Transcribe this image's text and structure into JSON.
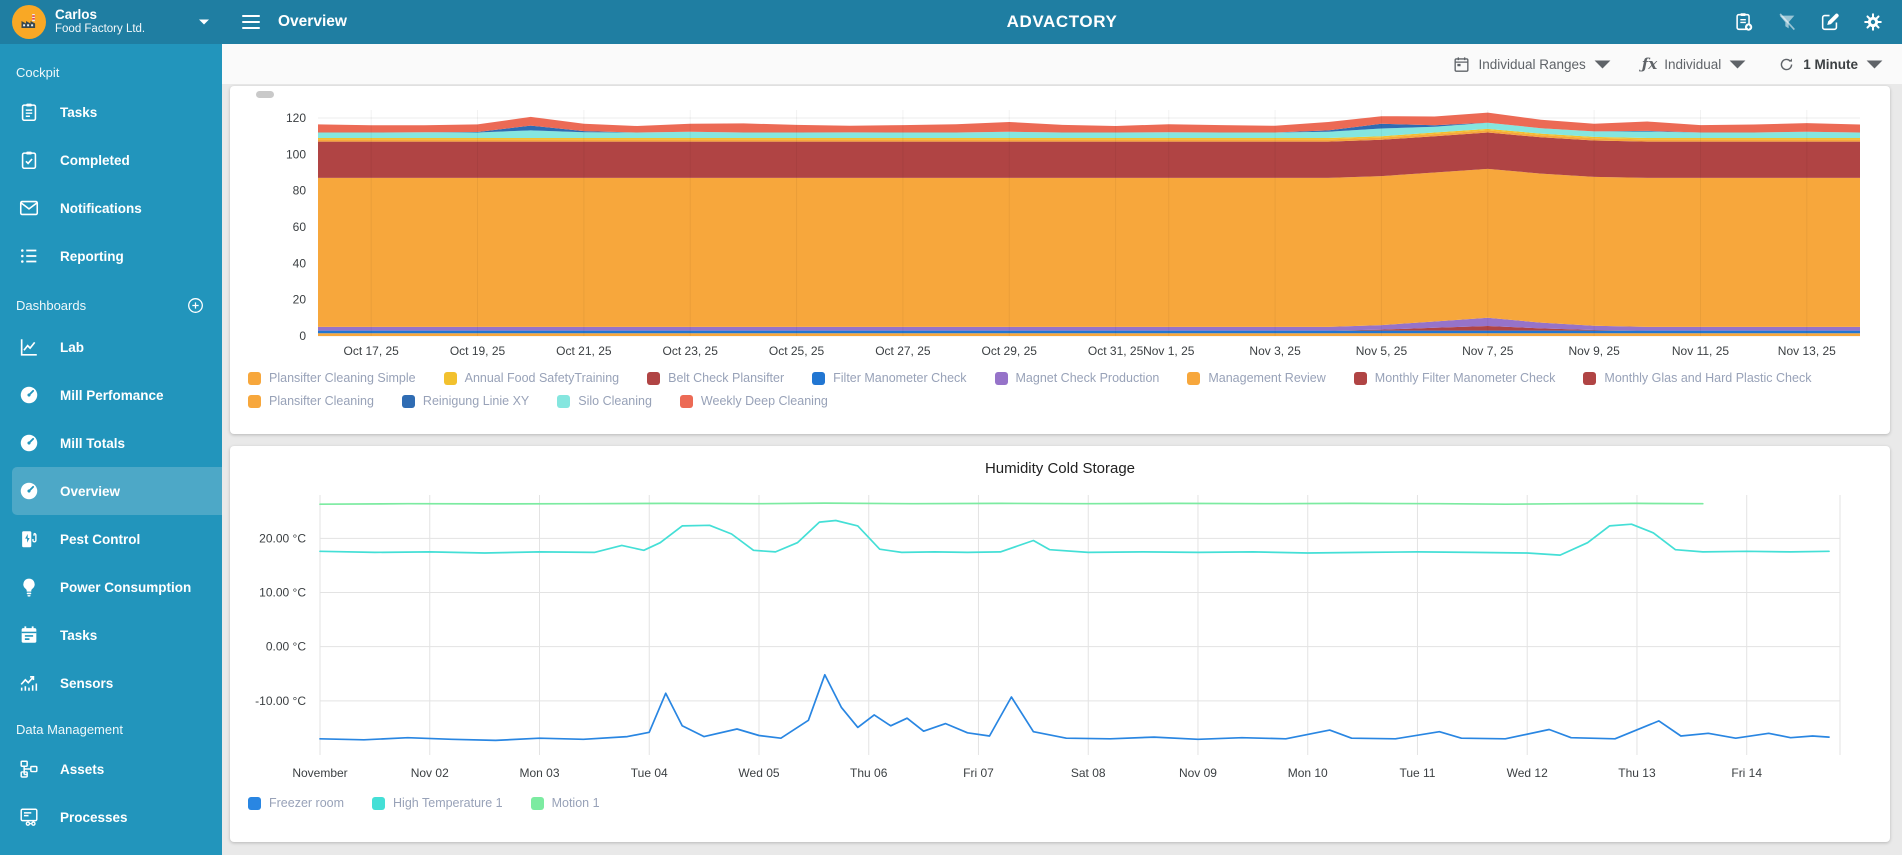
{
  "header": {
    "user": {
      "name": "Carlos",
      "org": "Food Factory Ltd."
    },
    "page_title": "Overview",
    "app_title": "ADVACTORY"
  },
  "toolbar": {
    "range_label": "Individual Ranges",
    "aggregation_label": "Individual",
    "refresh_label": "1 Minute"
  },
  "sidebar": {
    "sections": [
      {
        "title": "Cockpit",
        "items": [
          {
            "label": "Tasks",
            "icon": "clipboard-list"
          },
          {
            "label": "Completed",
            "icon": "clipboard-check"
          },
          {
            "label": "Notifications",
            "icon": "mail"
          },
          {
            "label": "Reporting",
            "icon": "list"
          }
        ]
      },
      {
        "title": "Dashboards",
        "add_button": true,
        "items": [
          {
            "label": "Lab",
            "icon": "line-chart"
          },
          {
            "label": "Mill Perfomance",
            "icon": "gauge"
          },
          {
            "label": "Mill Totals",
            "icon": "gauge"
          },
          {
            "label": "Overview",
            "icon": "gauge",
            "active": true
          },
          {
            "label": "Pest Control",
            "icon": "charging"
          },
          {
            "label": "Power Consumption",
            "icon": "bulb"
          },
          {
            "label": "Tasks",
            "icon": "calendar"
          },
          {
            "label": "Sensors",
            "icon": "trending"
          }
        ]
      },
      {
        "title": "Data Management",
        "items": [
          {
            "label": "Assets",
            "icon": "hierarchy"
          },
          {
            "label": "Processes",
            "icon": "process"
          }
        ]
      }
    ]
  },
  "chart_data": [
    {
      "type": "area",
      "stacked": true,
      "title": "",
      "x_axis": "Daily values, Oct 16 2025 - Nov 14 2025 (30 points)",
      "ylim": [
        0,
        126
      ],
      "y_ticks": [
        0,
        20,
        40,
        60,
        80,
        100,
        120
      ],
      "x_ticks": [
        {
          "pos": 1,
          "label": "Oct 17, 25"
        },
        {
          "pos": 3,
          "label": "Oct 19, 25"
        },
        {
          "pos": 5,
          "label": "Oct 21, 25"
        },
        {
          "pos": 7,
          "label": "Oct 23, 25"
        },
        {
          "pos": 9,
          "label": "Oct 25, 25"
        },
        {
          "pos": 11,
          "label": "Oct 27, 25"
        },
        {
          "pos": 13,
          "label": "Oct 29, 25"
        },
        {
          "pos": 15,
          "label": "Oct 31, 25"
        },
        {
          "pos": 16,
          "label": "Nov 1, 25"
        },
        {
          "pos": 18,
          "label": "Nov 3, 25"
        },
        {
          "pos": 20,
          "label": "Nov 5, 25"
        },
        {
          "pos": 22,
          "label": "Nov 7, 25"
        },
        {
          "pos": 24,
          "label": "Nov 9, 25"
        },
        {
          "pos": 26,
          "label": "Nov 11, 25"
        },
        {
          "pos": 28,
          "label": "Nov 13, 25"
        }
      ],
      "n_points": 30,
      "series": [
        {
          "name": "Management Review",
          "color": "#F7A73C",
          "const": 1.5
        },
        {
          "name": "Filter Manometer Check",
          "color": "#2176D2",
          "const": 1.5
        },
        {
          "name": "Monthly Glas and Hard Plastic Check",
          "color": "#B04444",
          "values": [
            0,
            0,
            0,
            0,
            0,
            0,
            0,
            0,
            0,
            0,
            0,
            0,
            0,
            0,
            0,
            0,
            0,
            0,
            0,
            0,
            0.5,
            1.5,
            2.5,
            1.2,
            0.3,
            0,
            0,
            0,
            0,
            0
          ]
        },
        {
          "name": "Magnet Check Production",
          "color": "#9673C9",
          "values": [
            2,
            2,
            2,
            2,
            2,
            2,
            2,
            2,
            2,
            2,
            2,
            2,
            2,
            2,
            2,
            2,
            2,
            2,
            2,
            2,
            2.5,
            3.5,
            4.5,
            3.2,
            2.3,
            2,
            2,
            2,
            2,
            2
          ]
        },
        {
          "name": "Plansifter Cleaning Simple",
          "color": "#F7A73C",
          "const": 82
        },
        {
          "name": "Belt Check Plansifter",
          "color": "#B04444",
          "const": 20
        },
        {
          "name": "Plansifter Cleaning",
          "color": "#F7A73C",
          "const": 1.2
        },
        {
          "name": "Annual Food SafetyTraining",
          "color": "#F2C12E",
          "const": 0.8
        },
        {
          "name": "Silo Cleaning",
          "color": "#85E6DF",
          "values": [
            3,
            3,
            3.2,
            3,
            4.2,
            3.2,
            3,
            3.4,
            3,
            3,
            3.1,
            3,
            3,
            3.4,
            3,
            3,
            3.2,
            3,
            3,
            3.4,
            4.2,
            3.2,
            3.4,
            3,
            3,
            3.5,
            3,
            3,
            3.4,
            3
          ]
        },
        {
          "name": "Reinigung Linie XY",
          "color": "#2F6CB3",
          "values": [
            0,
            0,
            0,
            0.3,
            2.6,
            0.6,
            0,
            0,
            0,
            0,
            0,
            0,
            0,
            0,
            0,
            0,
            0,
            0,
            0,
            0.8,
            2.6,
            0.8,
            0,
            0,
            0,
            0.4,
            0,
            0,
            0,
            0
          ]
        },
        {
          "name": "Monthly Filter Manometer Check",
          "color": "#B04444",
          "const": 0
        },
        {
          "name": "Weekly Deep Cleaning",
          "color": "#EC6A55",
          "values": [
            4.5,
            4,
            3.8,
            4.2,
            4.8,
            4,
            3.6,
            4.4,
            5,
            4.2,
            3.6,
            4.1,
            4.6,
            5.4,
            4.2,
            3.6,
            4.4,
            4.1,
            3.7,
            4.6,
            4.2,
            4.8,
            5.6,
            4.6,
            4.2,
            5.2,
            4.1,
            4.4,
            4.8,
            4.4
          ]
        }
      ],
      "legend": [
        {
          "name": "Plansifter Cleaning Simple",
          "color": "#F7A73C"
        },
        {
          "name": "Annual Food SafetyTraining",
          "color": "#F2C12E"
        },
        {
          "name": "Belt Check Plansifter",
          "color": "#B04444"
        },
        {
          "name": "Filter Manometer Check",
          "color": "#2176D2"
        },
        {
          "name": "Magnet Check Production",
          "color": "#9673C9"
        },
        {
          "name": "Management Review",
          "color": "#F7A73C"
        },
        {
          "name": "Monthly Filter Manometer Check",
          "color": "#B04444"
        },
        {
          "name": "Monthly Glas and Hard Plastic Check",
          "color": "#B04444"
        },
        {
          "name": "Plansifter Cleaning",
          "color": "#F7A73C"
        },
        {
          "name": "Reinigung Linie XY",
          "color": "#2F6CB3"
        },
        {
          "name": "Silo Cleaning",
          "color": "#85E6DF"
        },
        {
          "name": "Weekly Deep Cleaning",
          "color": "#EC6A55"
        }
      ]
    },
    {
      "type": "line",
      "title": "Humidity Cold Storage",
      "x_axis": "Days, Nov 01 2025 (pos 0) - Nov 14 2025 (pos 13)",
      "ylim": [
        -20,
        28
      ],
      "y_ticks": [
        {
          "value": 20,
          "label": "20.00 °C"
        },
        {
          "value": 10,
          "label": "10.00 °C"
        },
        {
          "value": 0,
          "label": "0.00 °C"
        },
        {
          "value": -10,
          "label": "-10.00 °C"
        }
      ],
      "x_ticks": [
        {
          "pos": 0,
          "label": "November"
        },
        {
          "pos": 1,
          "label": "Nov 02"
        },
        {
          "pos": 2,
          "label": "Mon 03"
        },
        {
          "pos": 3,
          "label": "Tue 04"
        },
        {
          "pos": 4,
          "label": "Wed 05"
        },
        {
          "pos": 5,
          "label": "Thu 06"
        },
        {
          "pos": 6,
          "label": "Fri 07"
        },
        {
          "pos": 7,
          "label": "Sat 08"
        },
        {
          "pos": 8,
          "label": "Nov 09"
        },
        {
          "pos": 9,
          "label": "Mon 10"
        },
        {
          "pos": 10,
          "label": "Tue 11"
        },
        {
          "pos": 11,
          "label": "Wed 12"
        },
        {
          "pos": 12,
          "label": "Thu 13"
        },
        {
          "pos": 13,
          "label": "Fri 14"
        }
      ],
      "series": [
        {
          "name": "Freezer room",
          "color": "#2986E2",
          "unit": "°C",
          "points": [
            [
              0,
              -17
            ],
            [
              0.4,
              -17.2
            ],
            [
              0.8,
              -16.8
            ],
            [
              1.2,
              -17.1
            ],
            [
              1.6,
              -17.3
            ],
            [
              2,
              -16.9
            ],
            [
              2.4,
              -17.1
            ],
            [
              2.8,
              -16.6
            ],
            [
              3,
              -15.8
            ],
            [
              3.15,
              -8.6
            ],
            [
              3.3,
              -14.6
            ],
            [
              3.5,
              -16.6
            ],
            [
              3.8,
              -15.2
            ],
            [
              4,
              -16.4
            ],
            [
              4.2,
              -16.9
            ],
            [
              4.45,
              -13.6
            ],
            [
              4.6,
              -5.2
            ],
            [
              4.75,
              -11.2
            ],
            [
              4.9,
              -14.9
            ],
            [
              5.05,
              -12.6
            ],
            [
              5.2,
              -14.6
            ],
            [
              5.35,
              -13.2
            ],
            [
              5.5,
              -15.6
            ],
            [
              5.7,
              -14.2
            ],
            [
              5.9,
              -15.9
            ],
            [
              6.1,
              -16.5
            ],
            [
              6.3,
              -9.3
            ],
            [
              6.5,
              -15.7
            ],
            [
              6.8,
              -16.9
            ],
            [
              7.2,
              -17
            ],
            [
              7.6,
              -16.7
            ],
            [
              8,
              -17.1
            ],
            [
              8.4,
              -16.8
            ],
            [
              8.8,
              -17
            ],
            [
              9.2,
              -15.4
            ],
            [
              9.4,
              -16.9
            ],
            [
              9.8,
              -17
            ],
            [
              10.2,
              -15.7
            ],
            [
              10.4,
              -16.9
            ],
            [
              10.8,
              -17
            ],
            [
              11.2,
              -15.3
            ],
            [
              11.4,
              -16.8
            ],
            [
              11.8,
              -17
            ],
            [
              12.2,
              -13.7
            ],
            [
              12.4,
              -16.5
            ],
            [
              12.65,
              -16
            ],
            [
              12.9,
              -16.9
            ],
            [
              13.2,
              -16
            ],
            [
              13.4,
              -16.8
            ],
            [
              13.6,
              -16.5
            ],
            [
              13.75,
              -16.7
            ]
          ]
        },
        {
          "name": "High Temperature 1",
          "color": "#44DFD6",
          "unit": "°C",
          "points": [
            [
              0,
              17.6
            ],
            [
              0.5,
              17.4
            ],
            [
              1,
              17.5
            ],
            [
              1.5,
              17.3
            ],
            [
              2,
              17.5
            ],
            [
              2.5,
              17.4
            ],
            [
              2.75,
              18.7
            ],
            [
              2.95,
              17.8
            ],
            [
              3.1,
              19.2
            ],
            [
              3.3,
              22.3
            ],
            [
              3.55,
              22.4
            ],
            [
              3.75,
              20.8
            ],
            [
              3.95,
              17.8
            ],
            [
              4.15,
              17.5
            ],
            [
              4.35,
              19.2
            ],
            [
              4.55,
              23
            ],
            [
              4.7,
              23.3
            ],
            [
              4.9,
              22.3
            ],
            [
              5.1,
              18
            ],
            [
              5.3,
              17.4
            ],
            [
              5.6,
              17.5
            ],
            [
              5.9,
              17.4
            ],
            [
              6.2,
              17.5
            ],
            [
              6.5,
              19.6
            ],
            [
              6.65,
              17.9
            ],
            [
              7,
              17.4
            ],
            [
              7.5,
              17.5
            ],
            [
              8,
              17.4
            ],
            [
              8.5,
              17.5
            ],
            [
              9,
              17.3
            ],
            [
              9.5,
              17.4
            ],
            [
              10,
              17.5
            ],
            [
              10.5,
              17.4
            ],
            [
              11,
              17.3
            ],
            [
              11.3,
              16.9
            ],
            [
              11.55,
              19.2
            ],
            [
              11.75,
              22.3
            ],
            [
              11.95,
              22.6
            ],
            [
              12.15,
              21
            ],
            [
              12.35,
              17.9
            ],
            [
              12.6,
              17.5
            ],
            [
              13,
              17.6
            ],
            [
              13.4,
              17.5
            ],
            [
              13.75,
              17.6
            ]
          ]
        },
        {
          "name": "Motion 1",
          "color": "#7CEBA1",
          "unit": "°C",
          "points": [
            [
              0,
              26.3
            ],
            [
              0.8,
              26.4
            ],
            [
              1.6,
              26.35
            ],
            [
              2.4,
              26.4
            ],
            [
              3.2,
              26.45
            ],
            [
              4,
              26.4
            ],
            [
              4.6,
              26.5
            ],
            [
              5.4,
              26.4
            ],
            [
              6.2,
              26.45
            ],
            [
              7,
              26.4
            ],
            [
              7.8,
              26.45
            ],
            [
              8.6,
              26.4
            ],
            [
              9.4,
              26.45
            ],
            [
              10.2,
              26.4
            ],
            [
              10.8,
              26.3
            ],
            [
              11.4,
              26.4
            ],
            [
              12,
              26.45
            ],
            [
              12.6,
              26.4
            ]
          ]
        }
      ]
    }
  ]
}
